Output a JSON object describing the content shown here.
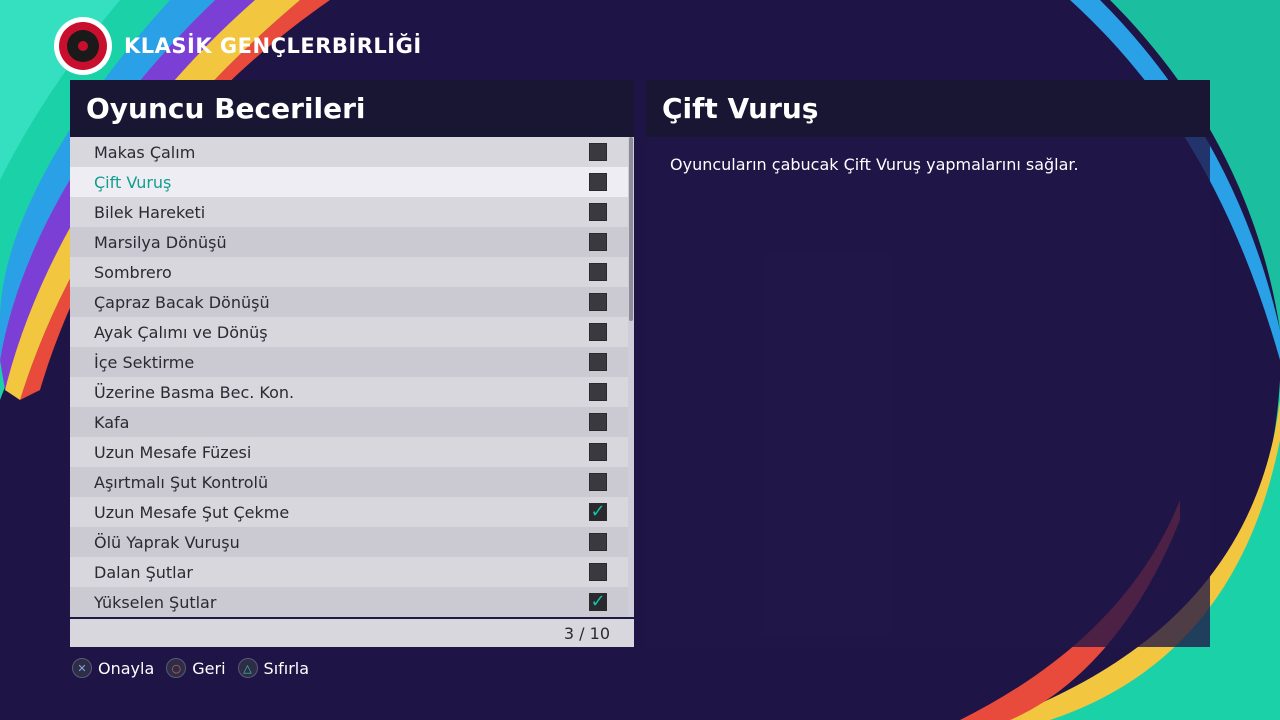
{
  "club": {
    "name": "KLASİK GENÇLERBİRLİĞİ",
    "logo_icon": "club-crest-icon"
  },
  "left_panel": {
    "title": "Oyuncu Becerileri"
  },
  "skills": [
    {
      "label": "Makas Çalım",
      "checked": false
    },
    {
      "label": "Çift Vuruş",
      "checked": false,
      "selected": true
    },
    {
      "label": "Bilek Hareketi",
      "checked": false
    },
    {
      "label": "Marsilya Dönüşü",
      "checked": false
    },
    {
      "label": "Sombrero",
      "checked": false
    },
    {
      "label": "Çapraz Bacak Dönüşü",
      "checked": false
    },
    {
      "label": "Ayak Çalımı ve Dönüş",
      "checked": false
    },
    {
      "label": "İçe Sektirme",
      "checked": false
    },
    {
      "label": "Üzerine Basma Bec. Kon.",
      "checked": false
    },
    {
      "label": "Kafa",
      "checked": false
    },
    {
      "label": "Uzun Mesafe Füzesi",
      "checked": false
    },
    {
      "label": "Aşırtmalı Şut Kontrolü",
      "checked": false
    },
    {
      "label": "Uzun Mesafe Şut Çekme",
      "checked": true
    },
    {
      "label": "Ölü Yaprak Vuruşu",
      "checked": false
    },
    {
      "label": "Dalan Şutlar",
      "checked": false
    },
    {
      "label": "Yükselen Şutlar",
      "checked": true
    }
  ],
  "pagination": {
    "text": "3 / 10"
  },
  "right_panel": {
    "title": "Çift Vuruş",
    "description": "Oyuncuların çabucak Çift Vuruş yapmalarını sağlar."
  },
  "controls": [
    {
      "label": "Onayla",
      "icon": "cross-button-icon"
    },
    {
      "label": "Geri",
      "icon": "circle-button-icon"
    },
    {
      "label": "Sıfırla",
      "icon": "triangle-button-icon"
    }
  ],
  "colors": {
    "background": "#1e1445",
    "selected_text": "#129d8e",
    "check_accent": "#15c2a6",
    "panel_header": "#181632"
  }
}
